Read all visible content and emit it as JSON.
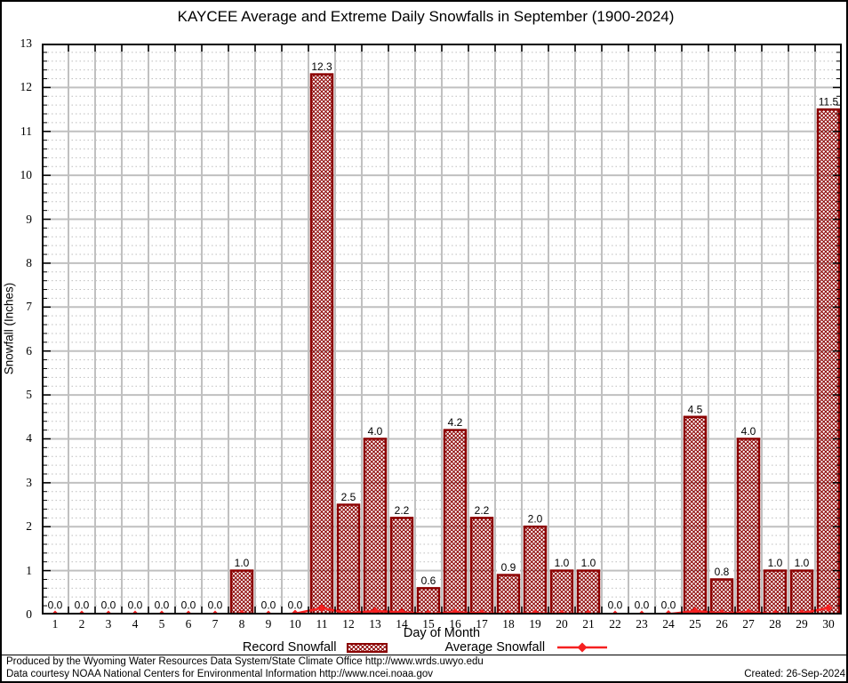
{
  "title": "KAYCEE Average and Extreme Daily Snowfalls in September (1900-2024)",
  "chart_data": {
    "type": "bar",
    "title": "KAYCEE Average and Extreme Daily Snowfalls in September (1900-2024)",
    "xlabel": "Day of Month",
    "ylabel": "Snowfall (Inches)",
    "ylim": [
      0,
      13
    ],
    "ytick_step": 1,
    "yminor_step": 0.2,
    "grid": true,
    "legend_position": "bottom",
    "categories": [
      1,
      2,
      3,
      4,
      5,
      6,
      7,
      8,
      9,
      10,
      11,
      12,
      13,
      14,
      15,
      16,
      17,
      18,
      19,
      20,
      21,
      22,
      23,
      24,
      25,
      26,
      27,
      28,
      29,
      30
    ],
    "series": [
      {
        "name": "Record Snowfall",
        "type": "bar",
        "values": [
          0.0,
          0.0,
          0.0,
          0.0,
          0.0,
          0.0,
          0.0,
          1.0,
          0.0,
          0.0,
          12.3,
          2.5,
          4.0,
          2.2,
          0.6,
          4.2,
          2.2,
          0.9,
          2.0,
          1.0,
          1.0,
          0.0,
          0.0,
          0.0,
          4.5,
          0.8,
          4.0,
          1.0,
          1.0,
          11.5
        ]
      },
      {
        "name": "Average Snowfall",
        "type": "line",
        "values": [
          0.0,
          0.0,
          0.0,
          0.0,
          0.0,
          0.0,
          0.0,
          0.02,
          0.0,
          0.02,
          0.15,
          0.03,
          0.08,
          0.05,
          0.02,
          0.05,
          0.03,
          0.02,
          0.03,
          0.02,
          0.02,
          0.0,
          0.0,
          0.01,
          0.08,
          0.03,
          0.05,
          0.02,
          0.03,
          0.15
        ]
      }
    ],
    "colors": {
      "bar_border": "#8b0000",
      "bar_hatch": "#8b0000",
      "line": "#f52020",
      "marker": "#f52020",
      "grid_major": "#c0c0c0",
      "grid_minor": "#bdbdbd",
      "axis": "#000000"
    }
  },
  "legend": {
    "record_label": "Record Snowfall",
    "average_label": "Average Snowfall"
  },
  "footer": {
    "line1": "Produced by the Wyoming Water Resources Data System/State Climate Office http://www.wrds.uwyo.edu",
    "line2": "Data courtesy NOAA National Centers for Environmental Information http://www.ncei.noaa.gov",
    "created": "Created: 26-Sep-2024"
  }
}
